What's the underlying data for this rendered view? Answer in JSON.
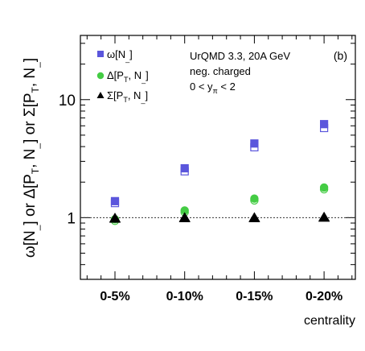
{
  "chart_data": {
    "type": "scatter",
    "panel_label": "(b)",
    "annotation": {
      "line1": "UrQMD 3.3, 20A GeV",
      "line2": "neg. charged",
      "line3_prefix": "0 < y",
      "line3_sub": "π",
      "line3_suffix": " < 2"
    },
    "xlabel": "centrality",
    "ylabel": "ω[N_] or Δ[P_T, N_] or Σ[P_T, N_]",
    "categories": [
      "0-5%",
      "0-10%",
      "0-15%",
      "0-20%"
    ],
    "y_scale": "log",
    "ylim": [
      0.3,
      35
    ],
    "y_major_ticks": [
      1,
      10
    ],
    "y_tick_labels": [
      "1",
      "10"
    ],
    "reference_line": {
      "y": 1,
      "style": "dotted"
    },
    "series": [
      {
        "name": "ω[N_]",
        "marker": "square",
        "color": "#5b56dc",
        "filled": [
          1.38,
          2.62,
          4.25,
          6.2
        ],
        "open": [
          1.33,
          2.47,
          3.95,
          5.75
        ]
      },
      {
        "name": "Δ[P_T, N_]",
        "marker": "circle",
        "color": "#44cc44",
        "filled": [
          0.97,
          1.15,
          1.45,
          1.8
        ],
        "open": [
          0.94,
          1.11,
          1.4,
          1.74
        ]
      },
      {
        "name": "Σ[P_T, N_]",
        "marker": "triangle",
        "color": "#000000",
        "filled": [
          1.0,
          1.01,
          1.01,
          1.02
        ],
        "open": [
          0.99,
          1.0,
          1.0,
          1.01
        ]
      }
    ],
    "legend": {
      "placement": "top-left",
      "entries": [
        {
          "main": "ω[N",
          "sub": "_",
          "close": "]"
        },
        {
          "main": "Δ[P",
          "sub": "T",
          "rest": ", N",
          "sub2": "_",
          "close": "]"
        },
        {
          "main": "Σ[P",
          "sub": "T",
          "rest": ", N",
          "sub2": "_",
          "close": "]"
        }
      ]
    }
  }
}
